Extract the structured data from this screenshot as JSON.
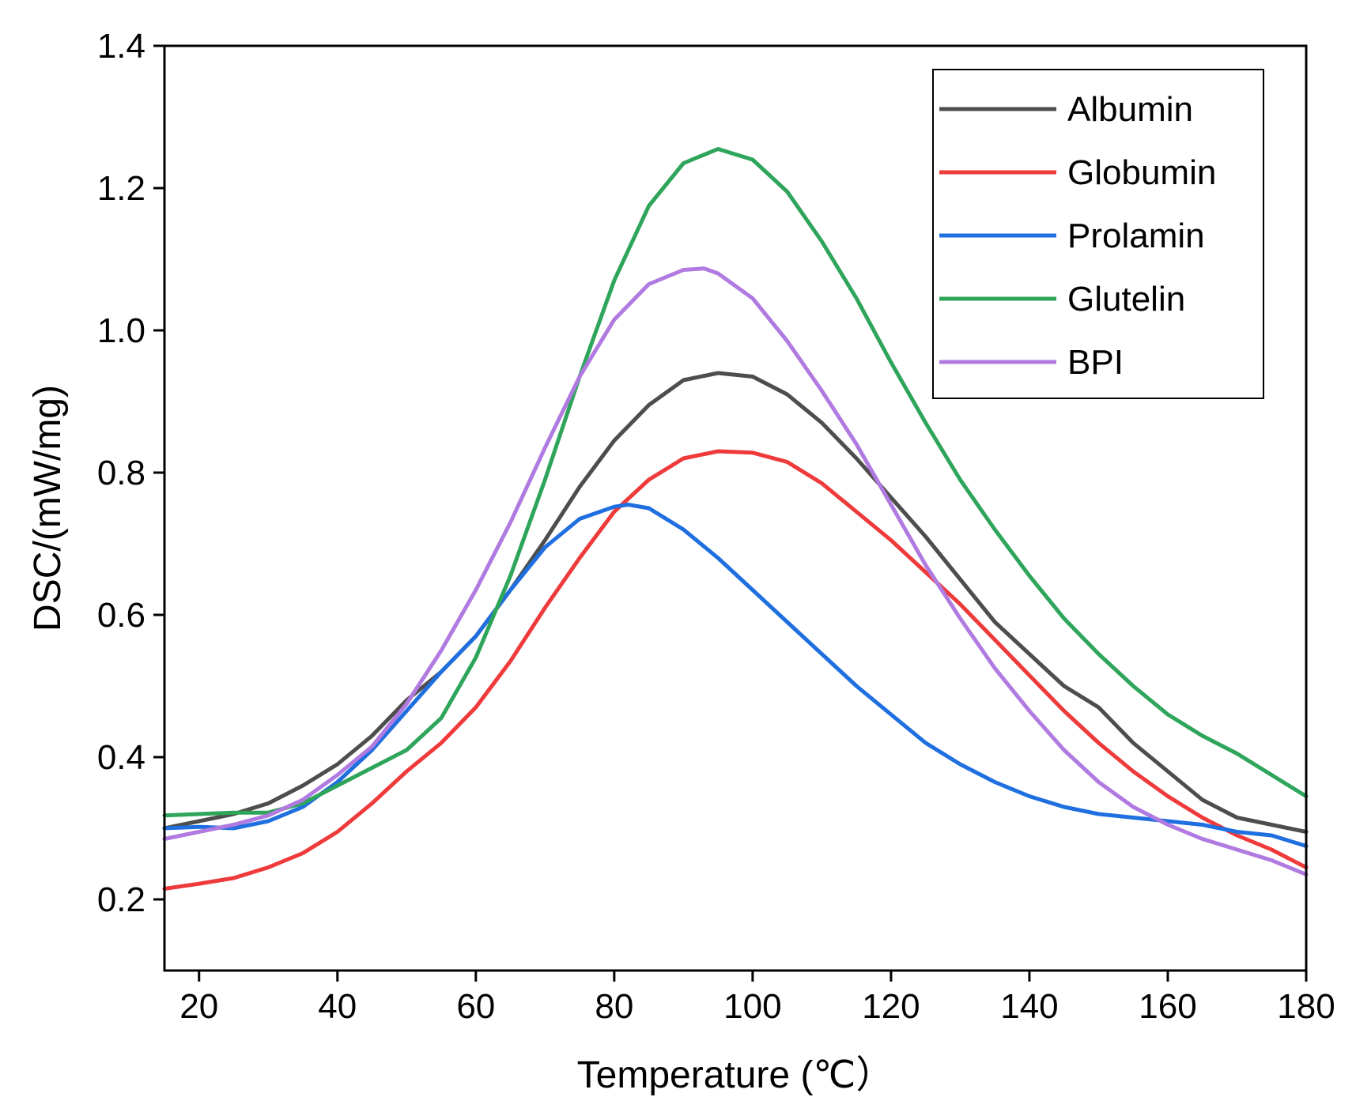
{
  "chart_data": {
    "type": "line",
    "title": "",
    "xlabel": "Temperature (℃）",
    "ylabel": "DSC/(mW/mg)",
    "xlim": [
      15,
      180
    ],
    "ylim": [
      0.1,
      1.4
    ],
    "xticks": [
      20,
      40,
      60,
      80,
      100,
      120,
      140,
      160,
      180
    ],
    "xtick_labels": [
      "20",
      "40",
      "60",
      "80",
      "100",
      "120",
      "140",
      "160",
      "180"
    ],
    "yticks": [
      0.2,
      0.4,
      0.6,
      0.8,
      1.0,
      1.2,
      1.4
    ],
    "ytick_labels": [
      "0.2",
      "0.4",
      "0.6",
      "0.8",
      "1.0",
      "1.2",
      "1.4"
    ],
    "grid": false,
    "legend_position": "top-right",
    "series": [
      {
        "name": "Albumin",
        "color": "#4d4d4d",
        "x": [
          15,
          20,
          25,
          30,
          35,
          40,
          45,
          50,
          55,
          60,
          65,
          70,
          75,
          80,
          85,
          90,
          95,
          100,
          105,
          110,
          115,
          120,
          125,
          130,
          135,
          140,
          145,
          150,
          155,
          160,
          165,
          170,
          175,
          180
        ],
        "y": [
          0.3,
          0.31,
          0.32,
          0.335,
          0.36,
          0.39,
          0.43,
          0.48,
          0.52,
          0.57,
          0.635,
          0.705,
          0.78,
          0.845,
          0.895,
          0.93,
          0.94,
          0.935,
          0.91,
          0.87,
          0.82,
          0.765,
          0.71,
          0.65,
          0.59,
          0.545,
          0.5,
          0.47,
          0.42,
          0.38,
          0.34,
          0.315,
          0.305,
          0.295
        ]
      },
      {
        "name": "Globumin",
        "color": "#ee3a3a",
        "x": [
          15,
          20,
          25,
          30,
          35,
          40,
          45,
          50,
          55,
          60,
          65,
          70,
          75,
          80,
          85,
          90,
          95,
          100,
          105,
          110,
          115,
          120,
          125,
          130,
          135,
          140,
          145,
          150,
          155,
          160,
          165,
          170,
          175,
          180
        ],
        "y": [
          0.215,
          0.222,
          0.23,
          0.245,
          0.265,
          0.295,
          0.335,
          0.38,
          0.42,
          0.47,
          0.535,
          0.61,
          0.68,
          0.745,
          0.79,
          0.82,
          0.83,
          0.828,
          0.815,
          0.785,
          0.745,
          0.705,
          0.66,
          0.615,
          0.565,
          0.515,
          0.465,
          0.42,
          0.38,
          0.345,
          0.315,
          0.29,
          0.27,
          0.245
        ]
      },
      {
        "name": "Prolamin",
        "color": "#1f6fe0",
        "x": [
          15,
          20,
          25,
          30,
          35,
          40,
          45,
          50,
          55,
          60,
          65,
          70,
          75,
          80,
          82,
          85,
          90,
          95,
          100,
          105,
          110,
          115,
          120,
          125,
          130,
          135,
          140,
          145,
          150,
          155,
          160,
          165,
          170,
          175,
          180
        ],
        "y": [
          0.3,
          0.302,
          0.3,
          0.31,
          0.33,
          0.365,
          0.41,
          0.465,
          0.52,
          0.57,
          0.635,
          0.695,
          0.735,
          0.752,
          0.755,
          0.75,
          0.72,
          0.68,
          0.635,
          0.59,
          0.545,
          0.5,
          0.46,
          0.42,
          0.39,
          0.365,
          0.345,
          0.33,
          0.32,
          0.315,
          0.31,
          0.305,
          0.295,
          0.29,
          0.275
        ]
      },
      {
        "name": "Glutelin",
        "color": "#2ea55a",
        "x": [
          15,
          20,
          25,
          30,
          35,
          40,
          45,
          50,
          55,
          60,
          65,
          70,
          75,
          80,
          85,
          90,
          95,
          100,
          105,
          110,
          115,
          120,
          125,
          130,
          135,
          140,
          145,
          150,
          155,
          160,
          165,
          170,
          175,
          180
        ],
        "y": [
          0.318,
          0.32,
          0.322,
          0.322,
          0.335,
          0.36,
          0.385,
          0.41,
          0.455,
          0.54,
          0.655,
          0.79,
          0.935,
          1.07,
          1.175,
          1.235,
          1.255,
          1.24,
          1.195,
          1.125,
          1.045,
          0.955,
          0.87,
          0.79,
          0.72,
          0.655,
          0.595,
          0.545,
          0.5,
          0.46,
          0.43,
          0.405,
          0.375,
          0.345
        ]
      },
      {
        "name": "BPI",
        "color": "#b07ae0",
        "x": [
          15,
          20,
          25,
          30,
          35,
          40,
          45,
          50,
          55,
          60,
          65,
          70,
          75,
          80,
          85,
          90,
          93,
          95,
          100,
          105,
          110,
          115,
          120,
          125,
          130,
          135,
          140,
          145,
          150,
          155,
          160,
          165,
          170,
          175,
          180
        ],
        "y": [
          0.285,
          0.295,
          0.305,
          0.318,
          0.34,
          0.375,
          0.415,
          0.475,
          0.55,
          0.635,
          0.73,
          0.835,
          0.935,
          1.015,
          1.065,
          1.085,
          1.087,
          1.08,
          1.045,
          0.985,
          0.915,
          0.84,
          0.755,
          0.67,
          0.595,
          0.525,
          0.465,
          0.41,
          0.365,
          0.33,
          0.305,
          0.285,
          0.27,
          0.255,
          0.235
        ]
      }
    ]
  }
}
